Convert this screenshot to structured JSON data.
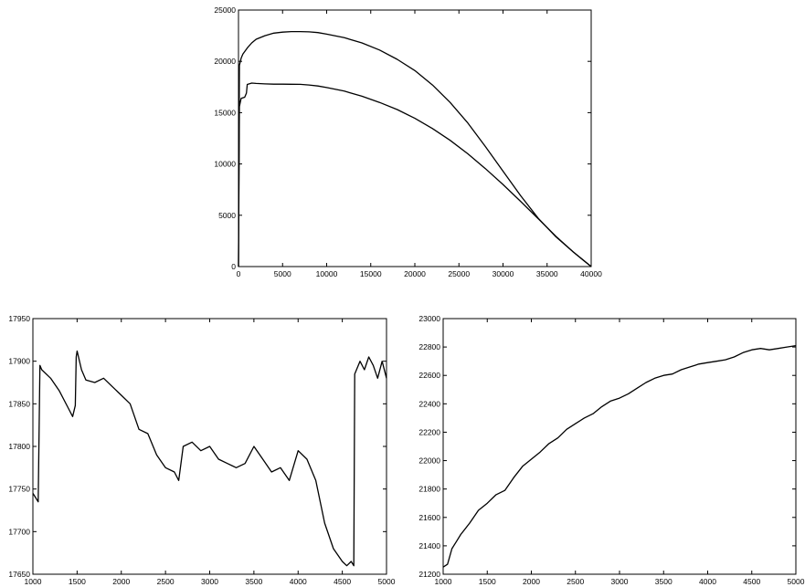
{
  "chart_data": [
    {
      "type": "line",
      "title": "",
      "xlabel": "",
      "ylabel": "",
      "xlim": [
        0,
        40000
      ],
      "ylim": [
        0,
        25000
      ],
      "xticks": [
        "0",
        "5000",
        "10000",
        "15000",
        "20000",
        "25000",
        "30000",
        "35000",
        "40000"
      ],
      "yticks": [
        "0",
        "5000",
        "10000",
        "15000",
        "20000",
        "25000"
      ],
      "grid": false,
      "series": [
        {
          "x": [
            0,
            100,
            300,
            500,
            1000,
            1500,
            2000,
            3000,
            4000,
            5000,
            6000,
            7000,
            8000,
            9000,
            10000,
            12000,
            14000,
            16000,
            18000,
            20000,
            22000,
            24000,
            26000,
            28000,
            30000,
            32000,
            34000,
            36000,
            38000,
            40000
          ],
          "values": [
            0,
            19600,
            20300,
            20700,
            21300,
            21800,
            22150,
            22500,
            22750,
            22850,
            22900,
            22900,
            22870,
            22800,
            22650,
            22300,
            21800,
            21100,
            20200,
            19100,
            17700,
            16000,
            14000,
            11700,
            9300,
            6900,
            4700,
            2900,
            1400,
            0
          ]
        },
        {
          "x": [
            0,
            100,
            300,
            700,
            900,
            1000,
            1500,
            2000,
            3000,
            4000,
            5000,
            6000,
            7000,
            8000,
            9000,
            10000,
            12000,
            14000,
            16000,
            18000,
            20000,
            22000,
            24000,
            26000,
            28000,
            30000,
            32000,
            34000,
            36000,
            38000,
            40000
          ],
          "values": [
            0,
            15600,
            16400,
            16500,
            16900,
            17750,
            17880,
            17850,
            17800,
            17780,
            17780,
            17770,
            17760,
            17700,
            17600,
            17450,
            17100,
            16600,
            16000,
            15300,
            14450,
            13450,
            12300,
            11000,
            9550,
            8000,
            6350,
            4650,
            2950,
            1400,
            0
          ]
        }
      ]
    },
    {
      "type": "line",
      "title": "",
      "xlabel": "",
      "ylabel": "",
      "xlim": [
        1000,
        5000
      ],
      "ylim": [
        17650,
        17950
      ],
      "xticks": [
        "1000",
        "1500",
        "2000",
        "2500",
        "3000",
        "3500",
        "4000",
        "4500",
        "5000"
      ],
      "yticks": [
        "17650",
        "17700",
        "17750",
        "17800",
        "17850",
        "17900",
        "17950"
      ],
      "grid": false,
      "series": [
        {
          "x": [
            1000,
            1030,
            1060,
            1080,
            1100,
            1200,
            1300,
            1400,
            1450,
            1480,
            1490,
            1500,
            1550,
            1600,
            1700,
            1800,
            1900,
            2000,
            2100,
            2200,
            2300,
            2400,
            2500,
            2600,
            2650,
            2700,
            2800,
            2900,
            3000,
            3100,
            3200,
            3300,
            3400,
            3500,
            3600,
            3700,
            3800,
            3900,
            4000,
            4100,
            4200,
            4300,
            4400,
            4500,
            4550,
            4600,
            4630,
            4640,
            4700,
            4750,
            4800,
            4850,
            4900,
            4950,
            5000
          ],
          "values": [
            17745,
            17740,
            17735,
            17895,
            17890,
            17880,
            17865,
            17845,
            17835,
            17848,
            17905,
            17912,
            17890,
            17878,
            17875,
            17880,
            17870,
            17860,
            17850,
            17820,
            17815,
            17790,
            17775,
            17770,
            17760,
            17800,
            17805,
            17795,
            17800,
            17785,
            17780,
            17775,
            17780,
            17800,
            17785,
            17770,
            17775,
            17760,
            17795,
            17785,
            17760,
            17710,
            17680,
            17665,
            17660,
            17665,
            17660,
            17885,
            17900,
            17890,
            17905,
            17895,
            17880,
            17900,
            17880
          ]
        }
      ]
    },
    {
      "type": "line",
      "title": "",
      "xlabel": "",
      "ylabel": "",
      "xlim": [
        1000,
        5000
      ],
      "ylim": [
        21200,
        23000
      ],
      "xticks": [
        "1000",
        "1500",
        "2000",
        "2500",
        "3000",
        "3500",
        "4000",
        "4500",
        "5000"
      ],
      "yticks": [
        "21200",
        "21400",
        "21600",
        "21800",
        "22000",
        "22200",
        "22400",
        "22600",
        "22800",
        "23000"
      ],
      "grid": false,
      "series": [
        {
          "x": [
            1000,
            1050,
            1100,
            1150,
            1200,
            1300,
            1400,
            1500,
            1600,
            1700,
            1800,
            1900,
            2000,
            2100,
            2200,
            2300,
            2400,
            2500,
            2600,
            2700,
            2800,
            2900,
            3000,
            3100,
            3200,
            3300,
            3400,
            3500,
            3600,
            3700,
            3800,
            3900,
            4000,
            4100,
            4200,
            4300,
            4400,
            4500,
            4600,
            4700,
            4800,
            4900,
            5000
          ],
          "values": [
            21250,
            21270,
            21380,
            21430,
            21480,
            21560,
            21650,
            21700,
            21760,
            21790,
            21880,
            21960,
            22010,
            22060,
            22120,
            22160,
            22220,
            22260,
            22300,
            22330,
            22380,
            22420,
            22440,
            22470,
            22510,
            22550,
            22580,
            22600,
            22610,
            22640,
            22660,
            22680,
            22690,
            22700,
            22710,
            22730,
            22760,
            22780,
            22790,
            22780,
            22790,
            22800,
            22810
          ]
        }
      ]
    }
  ]
}
